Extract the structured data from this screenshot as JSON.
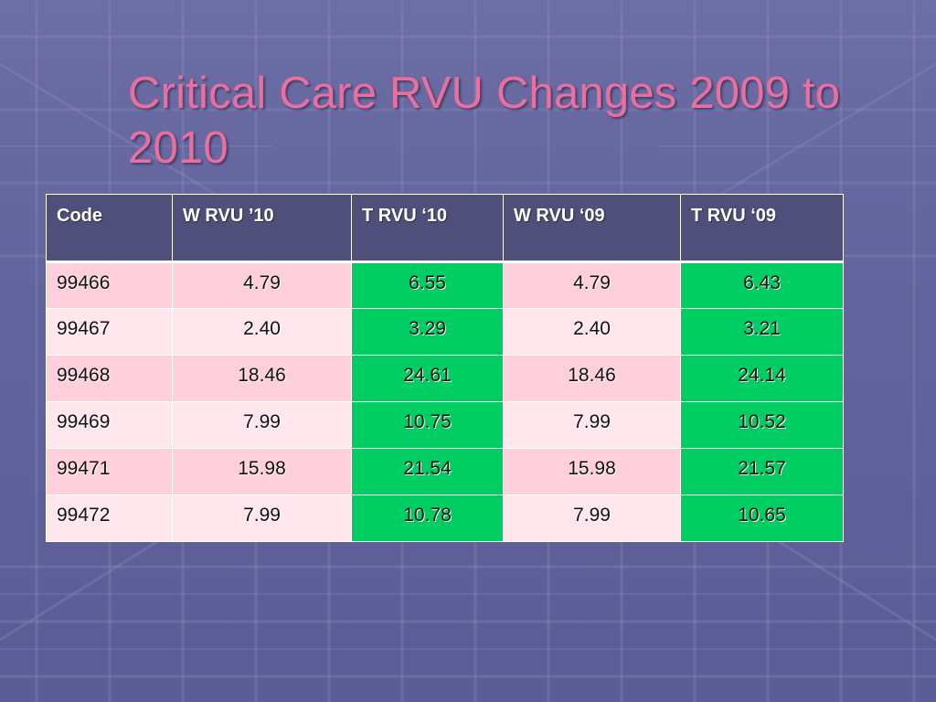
{
  "slide": {
    "title": "Critical Care RVU Changes 2009 to 2010"
  },
  "colors": {
    "title": "#ea6f9e",
    "background": "#64649e",
    "header_fill": "#4f4f7b",
    "row_pink_dark": "#ffd0dc",
    "row_pink_light": "#ffe7ed",
    "total_green": "#00cd62"
  },
  "table": {
    "headers": [
      "Code",
      "W RVU ’10",
      "T RVU ‘10",
      "W RVU ‘09",
      "T RVU ‘09"
    ],
    "rows": [
      [
        "99466",
        "4.79",
        "6.55",
        "4.79",
        "6.43"
      ],
      [
        "99467",
        "2.40",
        "3.29",
        "2.40",
        "3.21"
      ],
      [
        "99468",
        "18.46",
        "24.61",
        "18.46",
        "24.14"
      ],
      [
        "99469",
        "7.99",
        "10.75",
        "7.99",
        "10.52"
      ],
      [
        "99471",
        "15.98",
        "21.54",
        "15.98",
        "21.57"
      ],
      [
        "99472",
        "7.99",
        "10.78",
        "7.99",
        "10.65"
      ]
    ]
  }
}
